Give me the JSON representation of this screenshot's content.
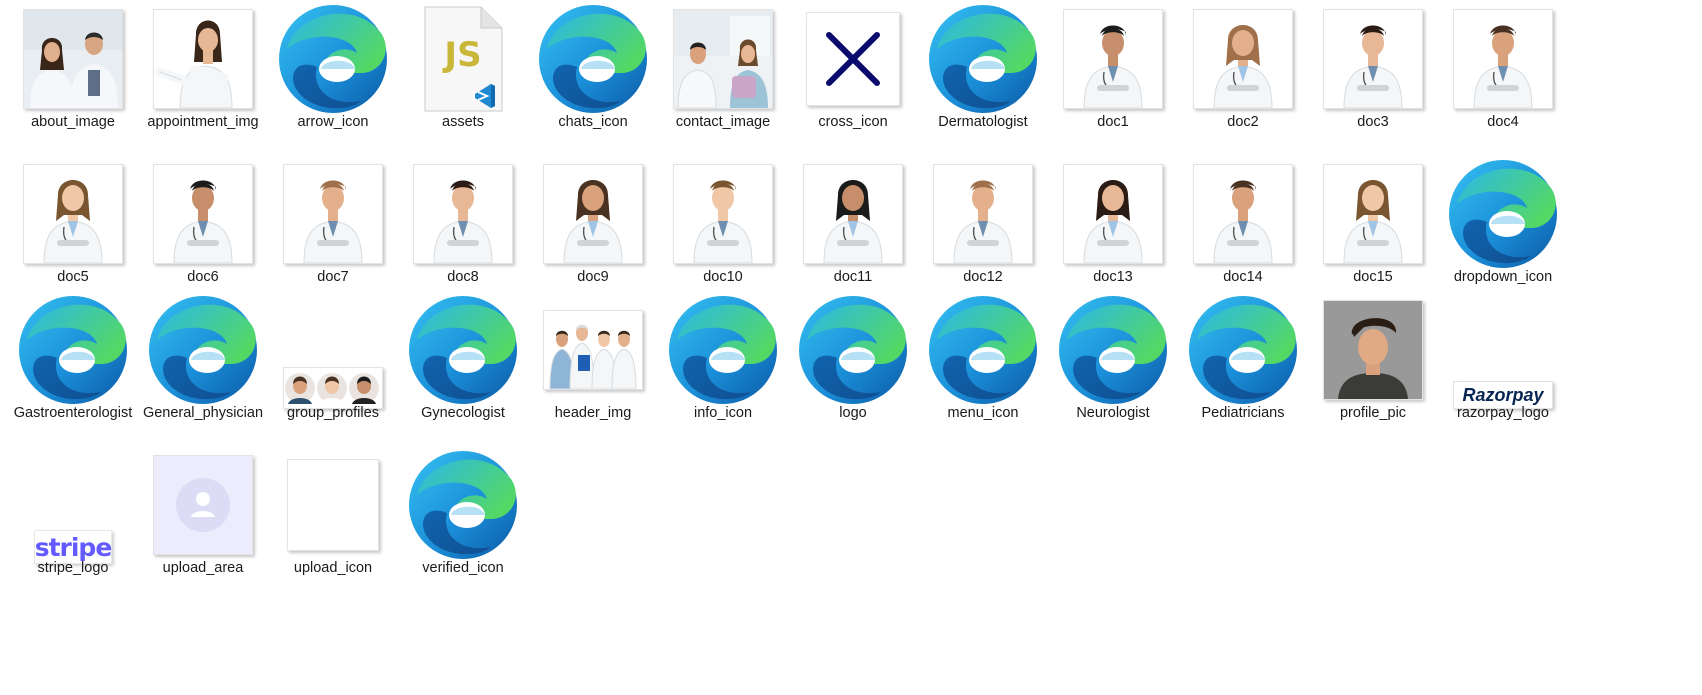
{
  "files": [
    {
      "label": "about_image",
      "kind": "photo",
      "variant": "couple"
    },
    {
      "label": "appointment_img",
      "kind": "photo",
      "variant": "pointing"
    },
    {
      "label": "arrow_icon",
      "kind": "edge"
    },
    {
      "label": "assets",
      "kind": "jsfile",
      "text": "JS"
    },
    {
      "label": "chats_icon",
      "kind": "edge"
    },
    {
      "label": "contact_image",
      "kind": "photo",
      "variant": "clinic"
    },
    {
      "label": "cross_icon",
      "kind": "cross"
    },
    {
      "label": "Dermatologist",
      "kind": "edge"
    },
    {
      "label": "doc1",
      "kind": "photo",
      "variant": "doctor"
    },
    {
      "label": "doc2",
      "kind": "photo",
      "variant": "doctor-f"
    },
    {
      "label": "doc3",
      "kind": "photo",
      "variant": "doctor"
    },
    {
      "label": "doc4",
      "kind": "photo",
      "variant": "doctor"
    },
    {
      "label": "doc5",
      "kind": "photo",
      "variant": "doctor-f"
    },
    {
      "label": "doc6",
      "kind": "photo",
      "variant": "doctor"
    },
    {
      "label": "doc7",
      "kind": "photo",
      "variant": "doctor"
    },
    {
      "label": "doc8",
      "kind": "photo",
      "variant": "doctor"
    },
    {
      "label": "doc9",
      "kind": "photo",
      "variant": "doctor-f"
    },
    {
      "label": "doc10",
      "kind": "photo",
      "variant": "doctor"
    },
    {
      "label": "doc11",
      "kind": "photo",
      "variant": "doctor-f"
    },
    {
      "label": "doc12",
      "kind": "photo",
      "variant": "doctor"
    },
    {
      "label": "doc13",
      "kind": "photo",
      "variant": "doctor-f"
    },
    {
      "label": "doc14",
      "kind": "photo",
      "variant": "doctor"
    },
    {
      "label": "doc15",
      "kind": "photo",
      "variant": "doctor-f"
    },
    {
      "label": "dropdown_icon",
      "kind": "edge"
    },
    {
      "label": "Gastroenterologist",
      "kind": "edge"
    },
    {
      "label": "General_physician",
      "kind": "edge"
    },
    {
      "label": "group_profiles",
      "kind": "group"
    },
    {
      "label": "Gynecologist",
      "kind": "edge"
    },
    {
      "label": "header_img",
      "kind": "photo",
      "variant": "team"
    },
    {
      "label": "info_icon",
      "kind": "edge"
    },
    {
      "label": "logo",
      "kind": "edge"
    },
    {
      "label": "menu_icon",
      "kind": "edge"
    },
    {
      "label": "Neurologist",
      "kind": "edge"
    },
    {
      "label": "Pediatricians",
      "kind": "edge"
    },
    {
      "label": "profile_pic",
      "kind": "profile"
    },
    {
      "label": "razorpay_logo",
      "kind": "razorpay",
      "text": "Razorpay"
    },
    {
      "label": "stripe_logo",
      "kind": "stripe",
      "text": "stripe"
    },
    {
      "label": "upload_area",
      "kind": "upload-area"
    },
    {
      "label": "upload_icon",
      "kind": "upload-icon"
    },
    {
      "label": "verified_icon",
      "kind": "edge"
    }
  ],
  "colors": {
    "edge_blue": "#0c59a4",
    "edge_green": "#4fd56b",
    "cross_navy": "#0b0b6e",
    "stripe_purple": "#635bff",
    "razorpay_navy": "#072654",
    "upload_bg": "#ececfc",
    "js_yellow": "#c9b73a",
    "vscode_blue": "#1f8ad2"
  }
}
